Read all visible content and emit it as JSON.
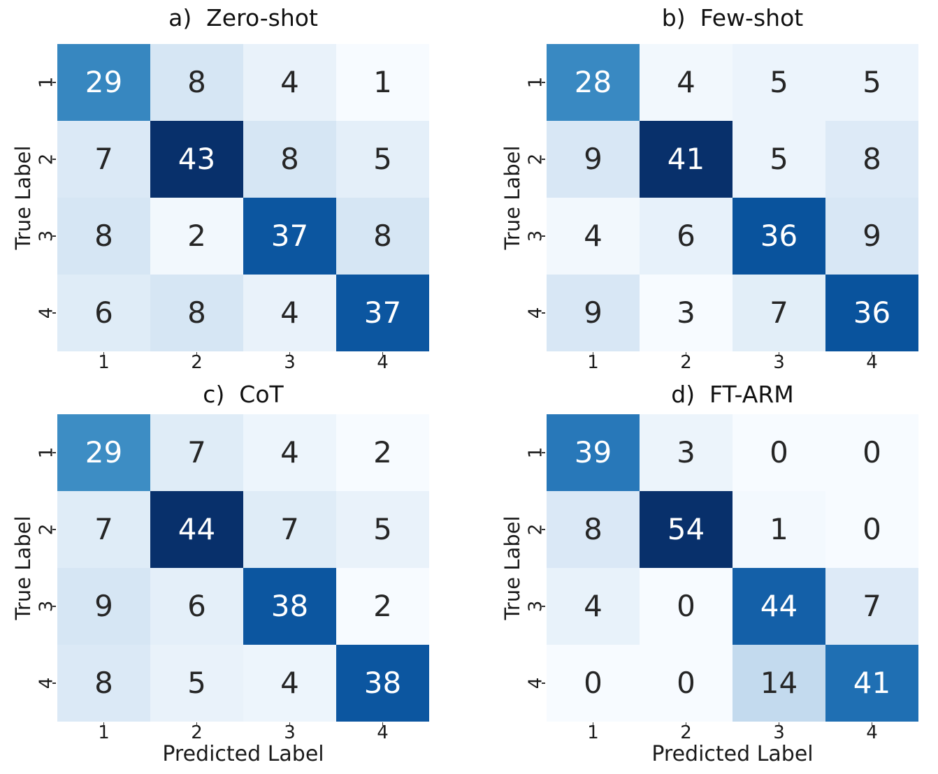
{
  "figure": {
    "background": "#ffffff",
    "x_axis_label": "Predicted Label",
    "y_axis_label": "True Label",
    "x_tick_labels": [
      "1",
      "2",
      "3",
      "4"
    ],
    "y_tick_labels": [
      "1",
      "2",
      "3",
      "4"
    ]
  },
  "colors": {
    "colormap_name": "Blues",
    "colormap_stops": [
      "#f7fbff",
      "#deebf7",
      "#c6dbef",
      "#9ecae1",
      "#6baed6",
      "#4292c6",
      "#2171b5",
      "#08519c",
      "#08306b"
    ],
    "annotation_dark_text": "#262626",
    "annotation_light_text": "#ffffff",
    "axis_text": "#1a1a1a",
    "luminance_threshold": 0.408
  },
  "chart_data": [
    {
      "type": "heatmap",
      "panel": "a",
      "title": "a)  Zero-shot",
      "x_categories": [
        "1",
        "2",
        "3",
        "4"
      ],
      "y_categories": [
        "1",
        "2",
        "3",
        "4"
      ],
      "rows": [
        [
          29,
          8,
          4,
          1
        ],
        [
          7,
          43,
          8,
          5
        ],
        [
          8,
          2,
          37,
          8
        ],
        [
          6,
          8,
          4,
          37
        ]
      ],
      "xlabel": "",
      "ylabel": "True Label",
      "colormap": "Blues",
      "annotated": true,
      "grid": false,
      "legend": false
    },
    {
      "type": "heatmap",
      "panel": "b",
      "title": "b)  Few-shot",
      "x_categories": [
        "1",
        "2",
        "3",
        "4"
      ],
      "y_categories": [
        "1",
        "2",
        "3",
        "4"
      ],
      "rows": [
        [
          28,
          4,
          5,
          5
        ],
        [
          9,
          41,
          5,
          8
        ],
        [
          4,
          6,
          36,
          9
        ],
        [
          9,
          3,
          7,
          36
        ]
      ],
      "xlabel": "",
      "ylabel": "True Label",
      "colormap": "Blues",
      "annotated": true,
      "grid": false,
      "legend": false
    },
    {
      "type": "heatmap",
      "panel": "c",
      "title": "c)  CoT",
      "x_categories": [
        "1",
        "2",
        "3",
        "4"
      ],
      "y_categories": [
        "1",
        "2",
        "3",
        "4"
      ],
      "rows": [
        [
          29,
          7,
          4,
          2
        ],
        [
          7,
          44,
          7,
          5
        ],
        [
          9,
          6,
          38,
          2
        ],
        [
          8,
          5,
          4,
          38
        ]
      ],
      "xlabel": "Predicted Label",
      "ylabel": "True Label",
      "colormap": "Blues",
      "annotated": true,
      "grid": false,
      "legend": false
    },
    {
      "type": "heatmap",
      "panel": "d",
      "title": "d)  FT-ARM",
      "x_categories": [
        "1",
        "2",
        "3",
        "4"
      ],
      "y_categories": [
        "1",
        "2",
        "3",
        "4"
      ],
      "rows": [
        [
          39,
          3,
          0,
          0
        ],
        [
          8,
          54,
          1,
          0
        ],
        [
          4,
          0,
          44,
          7
        ],
        [
          0,
          0,
          14,
          41
        ]
      ],
      "xlabel": "Predicted Label",
      "ylabel": "True Label",
      "colormap": "Blues",
      "annotated": true,
      "grid": false,
      "legend": false
    }
  ]
}
